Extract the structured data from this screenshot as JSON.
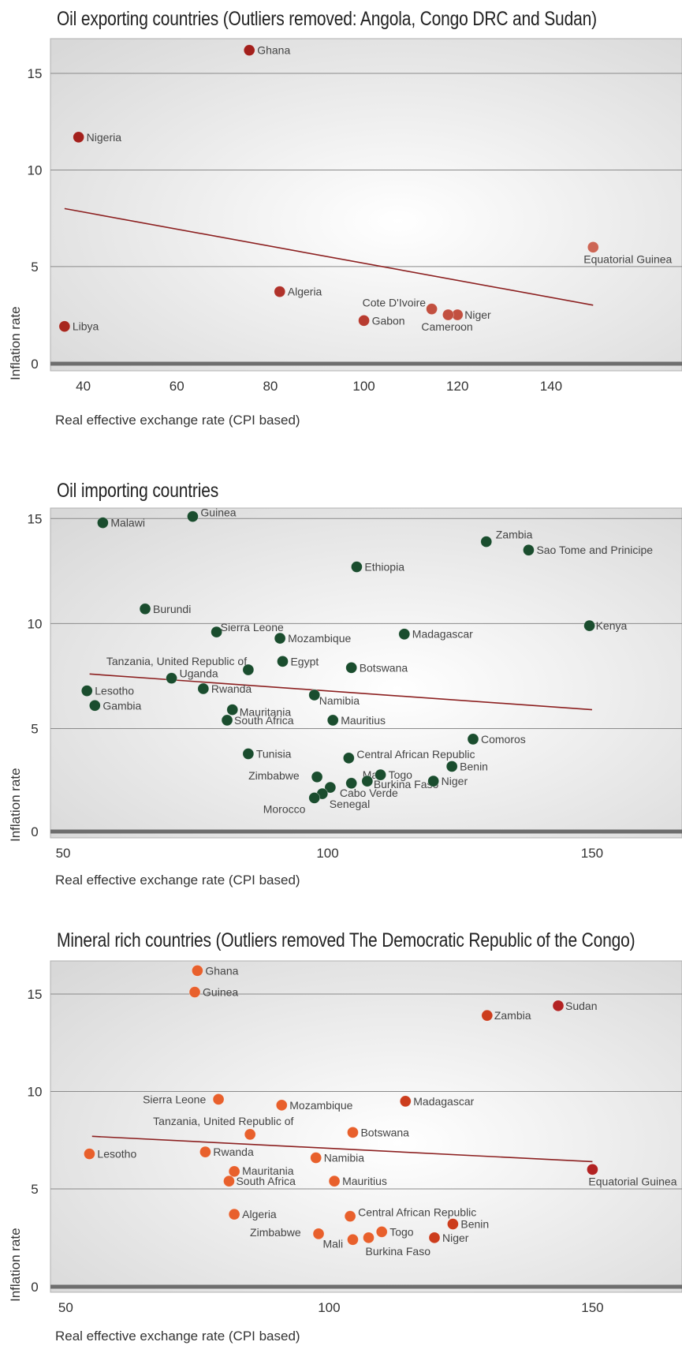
{
  "chart_data": [
    {
      "type": "scatter",
      "title": "Oil exporting countries (Outliers removed: Angola, Congo DRC and Sudan)",
      "xlabel": "Real effective exchange rate (CPI based)",
      "ylabel": "Inflation rate",
      "xlim": [
        34,
        168
      ],
      "ylim": [
        -0.4,
        16.8
      ],
      "xticks": [
        40,
        60,
        80,
        100,
        120,
        140
      ],
      "yticks": [
        0,
        5,
        10,
        15
      ],
      "grid": "horizontal",
      "trendline": {
        "x": [
          36,
          149
        ],
        "y": [
          8.0,
          3.0
        ]
      },
      "points": [
        {
          "label": "Ghana",
          "x": 75.5,
          "y": 16.2,
          "color": "#a3201c"
        },
        {
          "label": "Nigeria",
          "x": 39,
          "y": 11.7,
          "color": "#a3201c"
        },
        {
          "label": "Equatorial Guinea",
          "x": 149,
          "y": 6.0,
          "color": "#cd6655"
        },
        {
          "label": "Algeria",
          "x": 82,
          "y": 3.7,
          "color": "#b0322a"
        },
        {
          "label": "Cote D'Ivoire",
          "x": 114.5,
          "y": 2.8,
          "color": "#c25040"
        },
        {
          "label": "Niger",
          "x": 120,
          "y": 2.5,
          "color": "#c25040"
        },
        {
          "label": "Cameroon",
          "x": 118,
          "y": 2.5,
          "color": "#c25040"
        },
        {
          "label": "Gabon",
          "x": 100,
          "y": 2.2,
          "color": "#b83c30"
        },
        {
          "label": "Libya",
          "x": 36,
          "y": 1.9,
          "color": "#a8281f"
        }
      ]
    },
    {
      "type": "scatter",
      "title": "Oil importing countries",
      "xlabel": "Real effective exchange rate (CPI based)",
      "ylabel": "Inflation rate",
      "xlim": [
        48.5,
        167
      ],
      "ylim": [
        -0.2,
        15.5
      ],
      "xticks": [
        50,
        100,
        150
      ],
      "yticks": [
        0,
        5,
        10,
        15
      ],
      "grid": "horizontal",
      "trendline": {
        "x": [
          55,
          150
        ],
        "y": [
          7.6,
          5.9
        ]
      },
      "points": [
        {
          "label": "Malawi",
          "x": 57.5,
          "y": 14.8,
          "color": "#1a4d2e"
        },
        {
          "label": "Guinea",
          "x": 74.5,
          "y": 15.1,
          "color": "#1a4d2e"
        },
        {
          "label": "Zambia",
          "x": 130,
          "y": 13.9,
          "color": "#1a4d2e"
        },
        {
          "label": "Sao Tome and Prinicipe",
          "x": 138,
          "y": 13.5,
          "color": "#1a4d2e"
        },
        {
          "label": "Ethiopia",
          "x": 105.5,
          "y": 12.7,
          "color": "#1a4d2e"
        },
        {
          "label": "Burundi",
          "x": 65.5,
          "y": 10.7,
          "color": "#1a4d2e"
        },
        {
          "label": "Kenya",
          "x": 149.5,
          "y": 9.9,
          "color": "#1a4d2e"
        },
        {
          "label": "Sierra Leone",
          "x": 79,
          "y": 9.6,
          "color": "#1a4d2e"
        },
        {
          "label": "Mozambique",
          "x": 91,
          "y": 9.3,
          "color": "#1a4d2e"
        },
        {
          "label": "Madagascar",
          "x": 114.5,
          "y": 9.5,
          "color": "#1a4d2e"
        },
        {
          "label": "Egypt",
          "x": 91.5,
          "y": 8.2,
          "color": "#1a4d2e"
        },
        {
          "label": "Tanzania, United Republic of",
          "x": 85,
          "y": 7.8,
          "color": "#1a4d2e"
        },
        {
          "label": "Botswana",
          "x": 104.5,
          "y": 7.9,
          "color": "#1a4d2e"
        },
        {
          "label": "Uganda",
          "x": 70.5,
          "y": 7.4,
          "color": "#1a4d2e"
        },
        {
          "label": "Rwanda",
          "x": 76.5,
          "y": 6.9,
          "color": "#1a4d2e"
        },
        {
          "label": "Lesotho",
          "x": 54.5,
          "y": 6.8,
          "color": "#1a4d2e"
        },
        {
          "label": "Namibia",
          "x": 97.5,
          "y": 6.6,
          "color": "#1a4d2e"
        },
        {
          "label": "Gambia",
          "x": 56,
          "y": 6.1,
          "color": "#1a4d2e"
        },
        {
          "label": "Mauritania",
          "x": 82,
          "y": 5.9,
          "color": "#1a4d2e"
        },
        {
          "label": "South Africa",
          "x": 81,
          "y": 5.4,
          "color": "#1a4d2e"
        },
        {
          "label": "Mauritius",
          "x": 101,
          "y": 5.4,
          "color": "#1a4d2e"
        },
        {
          "label": "Comoros",
          "x": 127.5,
          "y": 4.5,
          "color": "#1a4d2e"
        },
        {
          "label": "Tunisia",
          "x": 85,
          "y": 3.8,
          "color": "#1a4d2e"
        },
        {
          "label": "Central African Republic",
          "x": 104,
          "y": 3.6,
          "color": "#1a4d2e"
        },
        {
          "label": "Benin",
          "x": 123.5,
          "y": 3.2,
          "color": "#1a4d2e"
        },
        {
          "label": "Zimbabwe",
          "x": 98,
          "y": 2.7,
          "color": "#1a4d2e"
        },
        {
          "label": "Mali",
          "x": 104.5,
          "y": 2.4,
          "color": "#1a4d2e"
        },
        {
          "label": "Togo",
          "x": 110,
          "y": 2.8,
          "color": "#1a4d2e"
        },
        {
          "label": "Burkina Faso",
          "x": 107.5,
          "y": 2.5,
          "color": "#1a4d2e"
        },
        {
          "label": "Niger",
          "x": 120,
          "y": 2.5,
          "color": "#1a4d2e"
        },
        {
          "label": "Cabo Verde",
          "x": 100.5,
          "y": 2.2,
          "color": "#1a4d2e"
        },
        {
          "label": "Senegal",
          "x": 99,
          "y": 1.9,
          "color": "#1a4d2e"
        },
        {
          "label": "Morocco",
          "x": 97.5,
          "y": 1.7,
          "color": "#1a4d2e"
        }
      ]
    },
    {
      "type": "scatter",
      "title": "Mineral rich countries (Outliers removed The Democratic Republic of the Congo)",
      "xlabel": "Real effective exchange rate (CPI based)",
      "ylabel": "Inflation rate",
      "xlim": [
        48,
        167
      ],
      "ylim": [
        -0.3,
        16.7
      ],
      "xticks": [
        50,
        100,
        150
      ],
      "yticks": [
        0,
        5,
        10,
        15
      ],
      "grid": "horizontal",
      "trendline": {
        "x": [
          55,
          150
        ],
        "y": [
          7.7,
          6.4
        ]
      },
      "points": [
        {
          "label": "Ghana",
          "x": 75,
          "y": 16.2,
          "color": "#e8602c"
        },
        {
          "label": "Guinea",
          "x": 74.5,
          "y": 15.1,
          "color": "#e8602c"
        },
        {
          "label": "Sudan",
          "x": 143.5,
          "y": 14.4,
          "color": "#b22222"
        },
        {
          "label": "Zambia",
          "x": 130,
          "y": 13.9,
          "color": "#cc3d1d"
        },
        {
          "label": "Sierra Leone",
          "x": 79,
          "y": 9.6,
          "color": "#e8602c"
        },
        {
          "label": "Mozambique",
          "x": 91,
          "y": 9.3,
          "color": "#e8602c"
        },
        {
          "label": "Madagascar",
          "x": 114.5,
          "y": 9.5,
          "color": "#cc3d1d"
        },
        {
          "label": "Tanzania, United Republic of",
          "x": 85,
          "y": 7.8,
          "color": "#e8602c"
        },
        {
          "label": "Botswana",
          "x": 104.5,
          "y": 7.9,
          "color": "#e8602c"
        },
        {
          "label": "Lesotho",
          "x": 54.5,
          "y": 6.8,
          "color": "#e8602c"
        },
        {
          "label": "Rwanda",
          "x": 76.5,
          "y": 6.9,
          "color": "#e8602c"
        },
        {
          "label": "Namibia",
          "x": 97.5,
          "y": 6.6,
          "color": "#e8602c"
        },
        {
          "label": "Equatorial Guinea",
          "x": 150,
          "y": 6.0,
          "color": "#b22222"
        },
        {
          "label": "Mauritania",
          "x": 82,
          "y": 5.9,
          "color": "#e8602c"
        },
        {
          "label": "South Africa",
          "x": 81,
          "y": 5.4,
          "color": "#e8602c"
        },
        {
          "label": "Mauritius",
          "x": 101,
          "y": 5.4,
          "color": "#e8602c"
        },
        {
          "label": "Algeria",
          "x": 82,
          "y": 3.7,
          "color": "#e8602c"
        },
        {
          "label": "Central African Republic",
          "x": 104,
          "y": 3.6,
          "color": "#e8602c"
        },
        {
          "label": "Benin",
          "x": 123.5,
          "y": 3.2,
          "color": "#cc3d1d"
        },
        {
          "label": "Zimbabwe",
          "x": 98,
          "y": 2.7,
          "color": "#e8602c"
        },
        {
          "label": "Togo",
          "x": 110,
          "y": 2.8,
          "color": "#e8602c"
        },
        {
          "label": "Mali",
          "x": 104.5,
          "y": 2.4,
          "color": "#e8602c"
        },
        {
          "label": "Burkina Faso",
          "x": 107.5,
          "y": 2.5,
          "color": "#e8602c"
        },
        {
          "label": "Niger",
          "x": 120,
          "y": 2.5,
          "color": "#cc3d1d"
        }
      ]
    }
  ]
}
